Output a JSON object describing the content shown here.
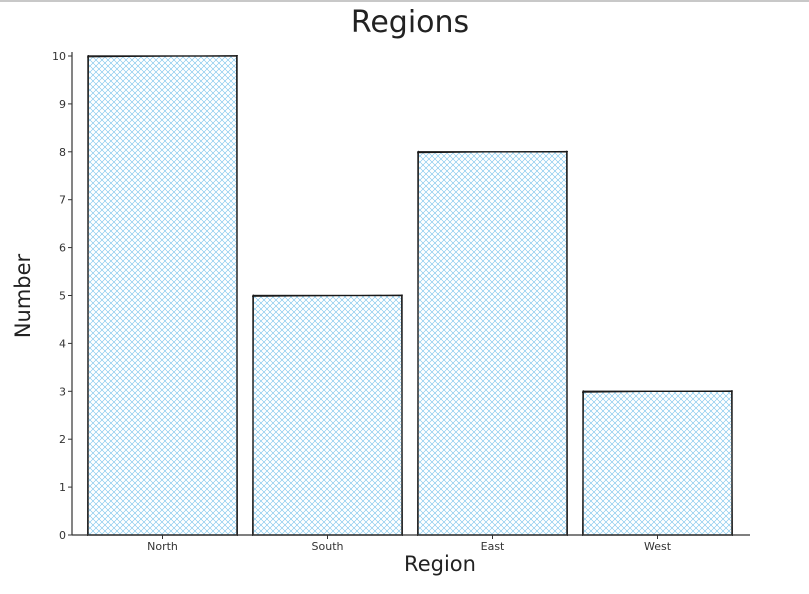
{
  "chart_data": {
    "type": "bar",
    "title": "Regions",
    "xlabel": "Region",
    "ylabel": "Number",
    "categories": [
      "North",
      "South",
      "East",
      "West"
    ],
    "values": [
      10,
      5,
      8,
      3
    ],
    "ylim": [
      0,
      10
    ],
    "yticks": [
      0,
      1,
      2,
      3,
      4,
      5,
      6,
      7,
      8,
      9,
      10
    ],
    "grid": false,
    "legend": "none",
    "colors": {
      "hatch": "#5fb6e6",
      "outline": "#1a1a1a",
      "axis": "#333333"
    }
  }
}
